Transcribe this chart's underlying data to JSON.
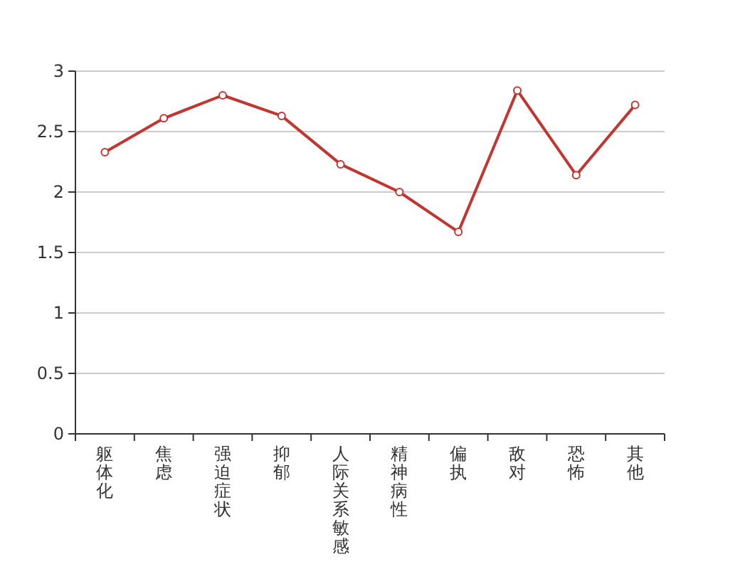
{
  "chart_data": {
    "type": "line",
    "categories": [
      "躯体化",
      "焦虑",
      "强迫症状",
      "抑郁",
      "人际关系敏感",
      "精神病性",
      "偏执",
      "敌对",
      "恐怖",
      "其他"
    ],
    "series": [
      {
        "color": "#c23531",
        "values": [
          2.33,
          2.61,
          2.8,
          2.63,
          2.23,
          2.0,
          1.67,
          2.84,
          2.14,
          2.72
        ]
      }
    ],
    "ylim": [
      0,
      3
    ],
    "yticks": [
      0,
      0.5,
      1,
      1.5,
      2,
      2.5,
      3
    ],
    "grid": "y",
    "marker": "circle",
    "line_style": "solid"
  }
}
